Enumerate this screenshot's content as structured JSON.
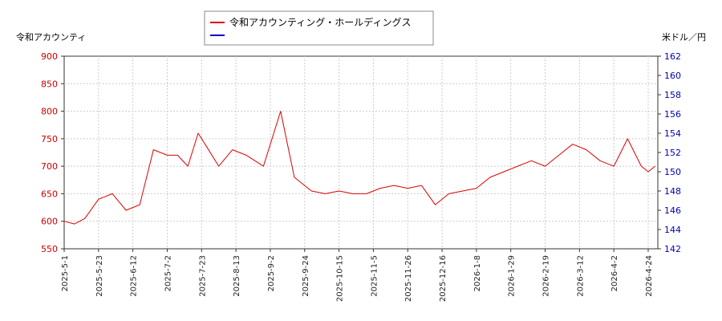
{
  "chart_data": {
    "type": "line",
    "legend": {
      "placement": "top-center"
    },
    "grid": true,
    "x_ticks": [
      "2025-5-1",
      "2025-5-23",
      "2025-6-12",
      "2025-7-2",
      "2025-7-23",
      "2025-8-13",
      "2025-9-2",
      "2025-9-24",
      "2025-10-15",
      "2025-11-5",
      "2025-11-26",
      "2025-12-16",
      "2026-1-8",
      "2026-1-29",
      "2026-2-19",
      "2026-3-12",
      "2026-4-2",
      "2026-4-24"
    ],
    "left_axis": {
      "label": "令和アカウンティ",
      "min": 550,
      "max": 900,
      "ticks": [
        550,
        600,
        650,
        700,
        750,
        800,
        850,
        900
      ]
    },
    "right_axis": {
      "label": "米ドル／円",
      "min": 142,
      "max": 162,
      "ticks": [
        142,
        144,
        146,
        148,
        150,
        152,
        154,
        156,
        158,
        160,
        162
      ]
    },
    "series": [
      {
        "name": "令和アカウンティング・ホールディングス",
        "color": "#dd0000",
        "axis": "left",
        "x_index": [
          0,
          0.3,
          0.6,
          1,
          1.4,
          1.8,
          2.2,
          2.6,
          3,
          3.3,
          3.6,
          3.9,
          4.1,
          4.5,
          4.9,
          5.3,
          5.8,
          6.3,
          6.7,
          7.2,
          7.6,
          8,
          8.4,
          8.8,
          9.2,
          9.6,
          10,
          10.4,
          10.8,
          11.2,
          11.6,
          12,
          12.4,
          12.8,
          13.2,
          13.6,
          14,
          14.4,
          14.8,
          15.2,
          15.6,
          16,
          16.4,
          16.8,
          17,
          17.2
        ],
        "values": [
          600,
          595,
          605,
          640,
          650,
          620,
          630,
          730,
          720,
          720,
          700,
          760,
          740,
          700,
          730,
          720,
          700,
          800,
          680,
          655,
          650,
          655,
          650,
          650,
          660,
          665,
          660,
          665,
          630,
          650,
          655,
          660,
          680,
          690,
          700,
          710,
          700,
          720,
          740,
          730,
          710,
          700,
          750,
          700,
          690,
          700
        ]
      }
    ]
  }
}
